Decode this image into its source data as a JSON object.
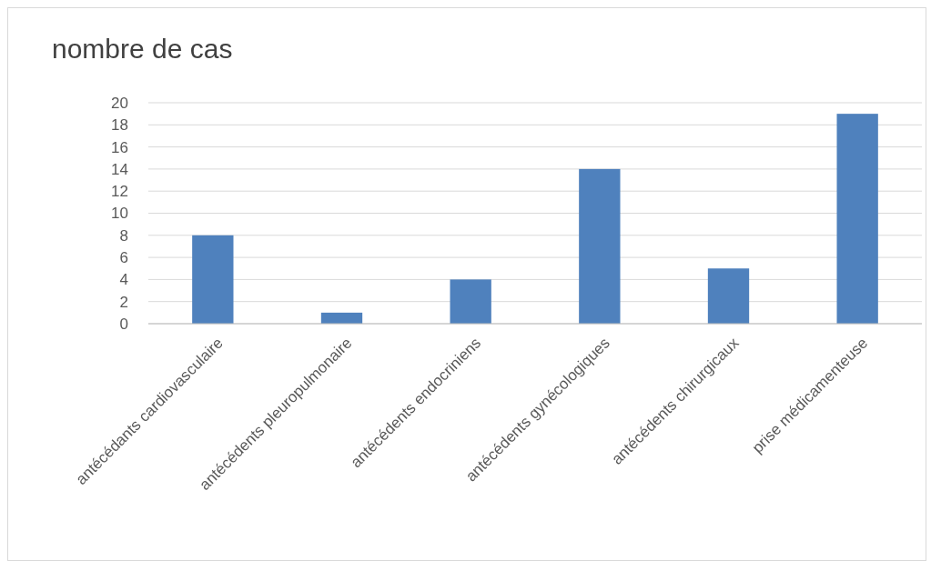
{
  "chart_data": {
    "type": "bar",
    "title": "nombre de cas",
    "categories": [
      "antécédants cardiovasculaire",
      "antécédents pleuropulmonaire",
      "antécédents endocriniens",
      "antécédents gynécologiques",
      "antécédents chirurgicaux",
      "prise médicamenteuse"
    ],
    "values": [
      8,
      1,
      4,
      14,
      5,
      19
    ],
    "color": "#4f81bd",
    "ylim": [
      0,
      20
    ],
    "yticks": [
      0,
      2,
      4,
      6,
      8,
      10,
      12,
      14,
      16,
      18,
      20
    ],
    "grid": "y"
  }
}
